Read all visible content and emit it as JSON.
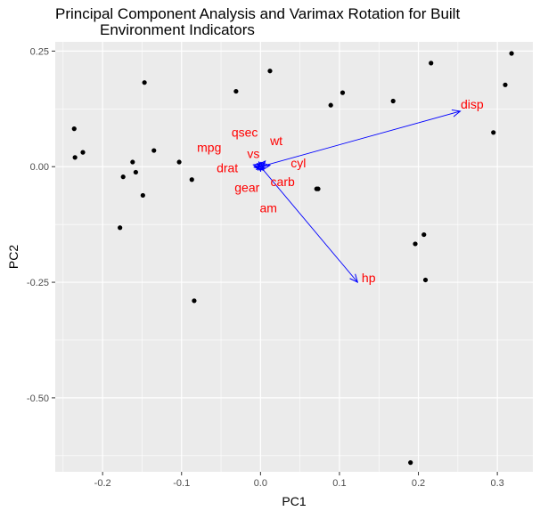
{
  "chart_data": {
    "type": "scatter",
    "title_line1": "Principal Component Analysis and Varimax Rotation for Built",
    "title_line2": "Environment Indicators",
    "xlabel": "PC1",
    "ylabel": "PC2",
    "xlim": [
      -0.26,
      0.345
    ],
    "ylim": [
      -0.66,
      0.27
    ],
    "x_ticks": [
      -0.2,
      -0.1,
      0.0,
      0.1,
      0.2,
      0.3
    ],
    "x_tick_labels": [
      "-0.2",
      "-0.1",
      "0.0",
      "0.1",
      "0.2",
      "0.3"
    ],
    "y_ticks": [
      0.25,
      0.0,
      -0.25,
      -0.5
    ],
    "y_tick_labels": [
      "0.25",
      "0.00",
      "-0.25",
      "-0.50"
    ],
    "grid": true,
    "colors": {
      "panel": "#ebebeb",
      "grid": "#ffffff",
      "points": "#000000",
      "arrows": "#0000ff",
      "labels": "#ff0000"
    },
    "points": [
      {
        "x": -0.236,
        "y": 0.082
      },
      {
        "x": -0.235,
        "y": 0.02
      },
      {
        "x": -0.225,
        "y": 0.031
      },
      {
        "x": -0.147,
        "y": 0.182
      },
      {
        "x": -0.135,
        "y": 0.035
      },
      {
        "x": -0.162,
        "y": 0.01
      },
      {
        "x": -0.174,
        "y": -0.022
      },
      {
        "x": -0.158,
        "y": -0.012
      },
      {
        "x": -0.149,
        "y": -0.062
      },
      {
        "x": -0.178,
        "y": -0.132
      },
      {
        "x": -0.103,
        "y": 0.01
      },
      {
        "x": -0.087,
        "y": -0.028
      },
      {
        "x": -0.084,
        "y": -0.29
      },
      {
        "x": -0.031,
        "y": 0.163
      },
      {
        "x": 0.012,
        "y": 0.207
      },
      {
        "x": 0.071,
        "y": -0.048
      },
      {
        "x": 0.073,
        "y": -0.048
      },
      {
        "x": 0.089,
        "y": 0.133
      },
      {
        "x": 0.104,
        "y": 0.16
      },
      {
        "x": 0.168,
        "y": 0.142
      },
      {
        "x": 0.19,
        "y": -0.64
      },
      {
        "x": 0.196,
        "y": -0.167
      },
      {
        "x": 0.207,
        "y": -0.147
      },
      {
        "x": 0.209,
        "y": -0.245
      },
      {
        "x": 0.216,
        "y": 0.224
      },
      {
        "x": 0.295,
        "y": 0.074
      },
      {
        "x": 0.31,
        "y": 0.177
      },
      {
        "x": 0.318,
        "y": 0.245
      }
    ],
    "loadings": [
      {
        "name": "disp",
        "x": 0.253,
        "y": 0.12,
        "label_x": 0.268,
        "label_y": 0.135
      },
      {
        "name": "hp",
        "x": 0.123,
        "y": -0.25,
        "label_x": 0.137,
        "label_y": -0.24
      },
      {
        "name": "cyl",
        "x": 0.012,
        "y": 0.003,
        "label_x": 0.048,
        "label_y": 0.008
      },
      {
        "name": "wt",
        "x": 0.006,
        "y": 0.012,
        "label_x": 0.02,
        "label_y": 0.056
      },
      {
        "name": "qsec",
        "x": -0.002,
        "y": 0.01,
        "label_x": -0.02,
        "label_y": 0.075
      },
      {
        "name": "vs",
        "x": -0.004,
        "y": 0.006,
        "label_x": -0.009,
        "label_y": 0.028
      },
      {
        "name": "mpg",
        "x": -0.009,
        "y": 0.004,
        "label_x": -0.065,
        "label_y": 0.042
      },
      {
        "name": "drat",
        "x": -0.008,
        "y": -0.001,
        "label_x": -0.042,
        "label_y": -0.002
      },
      {
        "name": "gear",
        "x": -0.005,
        "y": -0.006,
        "label_x": -0.017,
        "label_y": -0.045
      },
      {
        "name": "carb",
        "x": 0.004,
        "y": -0.008,
        "label_x": 0.028,
        "label_y": -0.032
      },
      {
        "name": "am",
        "x": 0.0,
        "y": -0.009,
        "label_x": 0.01,
        "label_y": -0.089
      }
    ]
  }
}
